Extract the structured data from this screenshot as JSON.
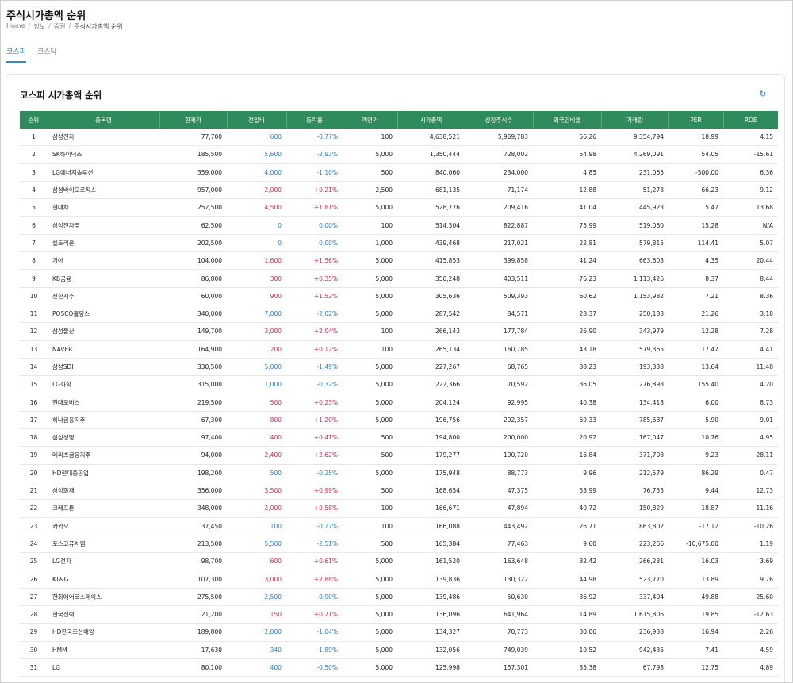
{
  "header": {
    "title": "주식시가총액 순위",
    "breadcrumb": [
      "Home",
      "정보",
      "증권",
      "주식시가총액 순위"
    ]
  },
  "tabs": [
    {
      "label": "코스피",
      "active": true
    },
    {
      "label": "코스닥",
      "active": false
    }
  ],
  "card": {
    "title": "코스피 시가총액 순위",
    "refresh_icon": "refresh-icon"
  },
  "colors": {
    "header_bg": "#2f8b5c",
    "up": "#e0284a",
    "down": "#2a7fd4",
    "accent": "#2a8bd6"
  },
  "table": {
    "columns": [
      "순위",
      "종목명",
      "현재가",
      "전일비",
      "등락률",
      "액면가",
      "시가총액",
      "상장주식수",
      "외국인비율",
      "거래량",
      "PER",
      "ROE"
    ],
    "rows": [
      {
        "rank": "1",
        "name": "삼성전자",
        "price": "77,700",
        "change": "600",
        "rate": "-0.77%",
        "dir": "down",
        "par": "100",
        "cap": "4,638,521",
        "shares": "5,969,783",
        "foreign": "56.26",
        "volume": "9,354,794",
        "per": "18.99",
        "roe": "4.15"
      },
      {
        "rank": "2",
        "name": "SK하이닉스",
        "price": "185,500",
        "change": "5,600",
        "rate": "-2.93%",
        "dir": "down",
        "par": "5,000",
        "cap": "1,350,444",
        "shares": "728,002",
        "foreign": "54.98",
        "volume": "4,269,091",
        "per": "54.05",
        "roe": "-15.61"
      },
      {
        "rank": "3",
        "name": "LG에너지솔루션",
        "price": "359,000",
        "change": "4,000",
        "rate": "-1.10%",
        "dir": "down",
        "par": "500",
        "cap": "840,060",
        "shares": "234,000",
        "foreign": "4.85",
        "volume": "231,065",
        "per": "-500.00",
        "roe": "6.36"
      },
      {
        "rank": "4",
        "name": "삼성바이오로직스",
        "price": "957,000",
        "change": "2,000",
        "rate": "+0.21%",
        "dir": "up",
        "par": "2,500",
        "cap": "681,135",
        "shares": "71,174",
        "foreign": "12.88",
        "volume": "51,278",
        "per": "66.23",
        "roe": "9.12"
      },
      {
        "rank": "5",
        "name": "현대차",
        "price": "252,500",
        "change": "4,500",
        "rate": "+1.81%",
        "dir": "up",
        "par": "5,000",
        "cap": "528,776",
        "shares": "209,416",
        "foreign": "41.04",
        "volume": "445,923",
        "per": "5.47",
        "roe": "13.68"
      },
      {
        "rank": "6",
        "name": "삼성전자우",
        "price": "62,500",
        "change": "0",
        "rate": "0.00%",
        "dir": "flat",
        "par": "100",
        "cap": "514,304",
        "shares": "822,887",
        "foreign": "75.99",
        "volume": "519,060",
        "per": "15.28",
        "roe": "N/A"
      },
      {
        "rank": "7",
        "name": "셀트리온",
        "price": "202,500",
        "change": "0",
        "rate": "0.00%",
        "dir": "flat",
        "par": "1,000",
        "cap": "439,468",
        "shares": "217,021",
        "foreign": "22.81",
        "volume": "579,815",
        "per": "114.41",
        "roe": "5.07"
      },
      {
        "rank": "8",
        "name": "기아",
        "price": "104,000",
        "change": "1,600",
        "rate": "+1.56%",
        "dir": "up",
        "par": "5,000",
        "cap": "415,853",
        "shares": "399,858",
        "foreign": "41.24",
        "volume": "663,603",
        "per": "4.35",
        "roe": "20.44"
      },
      {
        "rank": "9",
        "name": "KB금융",
        "price": "86,800",
        "change": "300",
        "rate": "+0.35%",
        "dir": "up",
        "par": "5,000",
        "cap": "350,248",
        "shares": "403,511",
        "foreign": "76.23",
        "volume": "1,113,426",
        "per": "8.37",
        "roe": "8.44"
      },
      {
        "rank": "10",
        "name": "신한지주",
        "price": "60,000",
        "change": "900",
        "rate": "+1.52%",
        "dir": "up",
        "par": "5,000",
        "cap": "305,636",
        "shares": "509,393",
        "foreign": "60.62",
        "volume": "1,153,982",
        "per": "7.21",
        "roe": "8.36"
      },
      {
        "rank": "11",
        "name": "POSCO홀딩스",
        "price": "340,000",
        "change": "7,000",
        "rate": "-2.02%",
        "dir": "down",
        "par": "5,000",
        "cap": "287,542",
        "shares": "84,571",
        "foreign": "28.37",
        "volume": "250,183",
        "per": "21.26",
        "roe": "3.18"
      },
      {
        "rank": "12",
        "name": "삼성물산",
        "price": "149,700",
        "change": "3,000",
        "rate": "+2.04%",
        "dir": "up",
        "par": "100",
        "cap": "266,143",
        "shares": "177,784",
        "foreign": "26.90",
        "volume": "343,979",
        "per": "12.28",
        "roe": "7.28"
      },
      {
        "rank": "13",
        "name": "NAVER",
        "price": "164,900",
        "change": "200",
        "rate": "+0.12%",
        "dir": "up",
        "par": "100",
        "cap": "265,134",
        "shares": "160,785",
        "foreign": "43.18",
        "volume": "579,365",
        "per": "17.47",
        "roe": "4.41"
      },
      {
        "rank": "14",
        "name": "삼성SDI",
        "price": "330,500",
        "change": "5,000",
        "rate": "-1.49%",
        "dir": "down",
        "par": "5,000",
        "cap": "227,267",
        "shares": "68,765",
        "foreign": "38.23",
        "volume": "193,338",
        "per": "13.64",
        "roe": "11.48"
      },
      {
        "rank": "15",
        "name": "LG화학",
        "price": "315,000",
        "change": "1,000",
        "rate": "-0.32%",
        "dir": "down",
        "par": "5,000",
        "cap": "222,366",
        "shares": "70,592",
        "foreign": "36.05",
        "volume": "276,898",
        "per": "155.40",
        "roe": "4.20"
      },
      {
        "rank": "16",
        "name": "현대모비스",
        "price": "219,500",
        "change": "500",
        "rate": "+0.23%",
        "dir": "up",
        "par": "5,000",
        "cap": "204,124",
        "shares": "92,995",
        "foreign": "40.38",
        "volume": "134,418",
        "per": "6.00",
        "roe": "8.73"
      },
      {
        "rank": "17",
        "name": "하나금융지주",
        "price": "67,300",
        "change": "800",
        "rate": "+1.20%",
        "dir": "up",
        "par": "5,000",
        "cap": "196,756",
        "shares": "292,357",
        "foreign": "69.33",
        "volume": "785,687",
        "per": "5.90",
        "roe": "9.01"
      },
      {
        "rank": "18",
        "name": "삼성생명",
        "price": "97,400",
        "change": "400",
        "rate": "+0.41%",
        "dir": "up",
        "par": "500",
        "cap": "194,800",
        "shares": "200,000",
        "foreign": "20.92",
        "volume": "167,047",
        "per": "10.76",
        "roe": "4.95"
      },
      {
        "rank": "19",
        "name": "메리츠금융지주",
        "price": "94,000",
        "change": "2,400",
        "rate": "+2.62%",
        "dir": "up",
        "par": "500",
        "cap": "179,277",
        "shares": "190,720",
        "foreign": "16.84",
        "volume": "371,708",
        "per": "9.23",
        "roe": "28.11"
      },
      {
        "rank": "20",
        "name": "HD현대중공업",
        "price": "198,200",
        "change": "500",
        "rate": "-0.25%",
        "dir": "down",
        "par": "5,000",
        "cap": "175,948",
        "shares": "88,773",
        "foreign": "9.96",
        "volume": "212,579",
        "per": "86.29",
        "roe": "0.47"
      },
      {
        "rank": "21",
        "name": "삼성화재",
        "price": "356,000",
        "change": "3,500",
        "rate": "+0.99%",
        "dir": "up",
        "par": "500",
        "cap": "168,654",
        "shares": "47,375",
        "foreign": "53.99",
        "volume": "76,755",
        "per": "9.44",
        "roe": "12.73"
      },
      {
        "rank": "22",
        "name": "크래프톤",
        "price": "348,000",
        "change": "2,000",
        "rate": "+0.58%",
        "dir": "up",
        "par": "100",
        "cap": "166,671",
        "shares": "47,894",
        "foreign": "40.72",
        "volume": "150,829",
        "per": "18.87",
        "roe": "11.16"
      },
      {
        "rank": "23",
        "name": "카카오",
        "price": "37,450",
        "change": "100",
        "rate": "-0.27%",
        "dir": "down",
        "par": "100",
        "cap": "166,088",
        "shares": "443,492",
        "foreign": "26.71",
        "volume": "863,802",
        "per": "-17.12",
        "roe": "-10.26"
      },
      {
        "rank": "24",
        "name": "포스코퓨처엠",
        "price": "213,500",
        "change": "5,500",
        "rate": "-2.51%",
        "dir": "down",
        "par": "500",
        "cap": "165,384",
        "shares": "77,463",
        "foreign": "9.60",
        "volume": "223,266",
        "per": "-10,675.00",
        "roe": "1.19"
      },
      {
        "rank": "25",
        "name": "LG전자",
        "price": "98,700",
        "change": "600",
        "rate": "+0.61%",
        "dir": "up",
        "par": "5,000",
        "cap": "161,520",
        "shares": "163,648",
        "foreign": "32.42",
        "volume": "266,231",
        "per": "16.03",
        "roe": "3.69"
      },
      {
        "rank": "26",
        "name": "KT&G",
        "price": "107,300",
        "change": "3,000",
        "rate": "+2.88%",
        "dir": "up",
        "par": "5,000",
        "cap": "139,836",
        "shares": "130,322",
        "foreign": "44.98",
        "volume": "523,770",
        "per": "13.89",
        "roe": "9.76"
      },
      {
        "rank": "27",
        "name": "한화에어로스페이스",
        "price": "275,500",
        "change": "2,500",
        "rate": "-0.90%",
        "dir": "down",
        "par": "5,000",
        "cap": "139,486",
        "shares": "50,630",
        "foreign": "36.92",
        "volume": "337,404",
        "per": "49.88",
        "roe": "25.60"
      },
      {
        "rank": "28",
        "name": "한국전력",
        "price": "21,200",
        "change": "150",
        "rate": "+0.71%",
        "dir": "up",
        "par": "5,000",
        "cap": "136,096",
        "shares": "641,964",
        "foreign": "14.89",
        "volume": "1,615,806",
        "per": "19.85",
        "roe": "-12.63"
      },
      {
        "rank": "29",
        "name": "HD한국조선해양",
        "price": "189,800",
        "change": "2,000",
        "rate": "-1.04%",
        "dir": "down",
        "par": "5,000",
        "cap": "134,327",
        "shares": "70,773",
        "foreign": "30.06",
        "volume": "236,938",
        "per": "16.94",
        "roe": "2.26"
      },
      {
        "rank": "30",
        "name": "HMM",
        "price": "17,630",
        "change": "340",
        "rate": "-1.89%",
        "dir": "down",
        "par": "5,000",
        "cap": "132,056",
        "shares": "749,039",
        "foreign": "10.52",
        "volume": "942,435",
        "per": "7.41",
        "roe": "4.59"
      },
      {
        "rank": "31",
        "name": "LG",
        "price": "80,100",
        "change": "400",
        "rate": "-0.50%",
        "dir": "down",
        "par": "5,000",
        "cap": "125,998",
        "shares": "157,301",
        "foreign": "35.38",
        "volume": "67,798",
        "per": "12.75",
        "roe": "4.89"
      }
    ]
  }
}
